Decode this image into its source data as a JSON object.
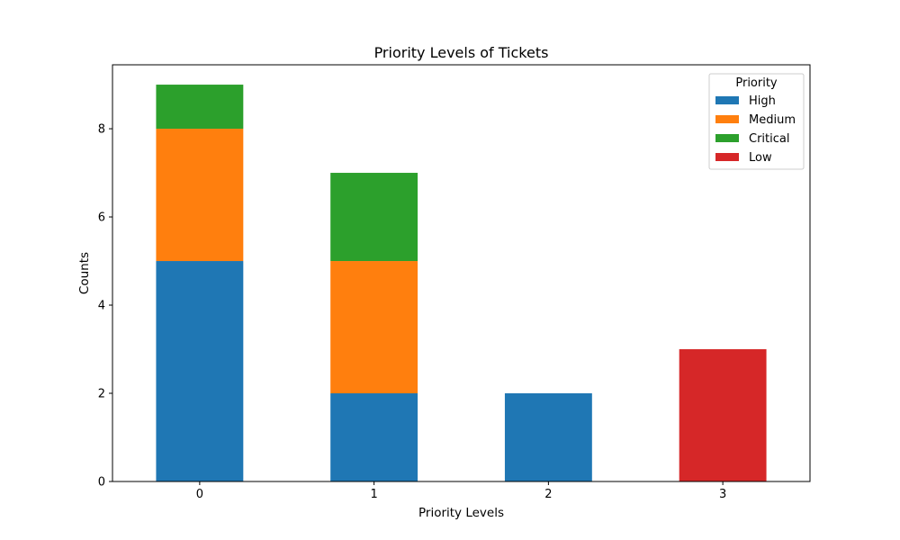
{
  "chart_data": {
    "type": "bar",
    "stacked": true,
    "title": "Priority Levels of Tickets",
    "xlabel": "Priority Levels",
    "ylabel": "Counts",
    "categories": [
      "0",
      "1",
      "2",
      "3"
    ],
    "ylim": [
      0,
      9.45
    ],
    "yticks": [
      0,
      2,
      4,
      6,
      8
    ],
    "series": [
      {
        "name": "High",
        "color": "#1f77b4",
        "values": [
          5,
          2,
          2,
          0
        ]
      },
      {
        "name": "Medium",
        "color": "#ff7f0e",
        "values": [
          3,
          3,
          0,
          0
        ]
      },
      {
        "name": "Critical",
        "color": "#2ca02c",
        "values": [
          1,
          2,
          0,
          0
        ]
      },
      {
        "name": "Low",
        "color": "#d62728",
        "values": [
          0,
          0,
          0,
          3
        ]
      }
    ],
    "legend": {
      "title": "Priority",
      "position": "top-right"
    },
    "grid": false
  }
}
